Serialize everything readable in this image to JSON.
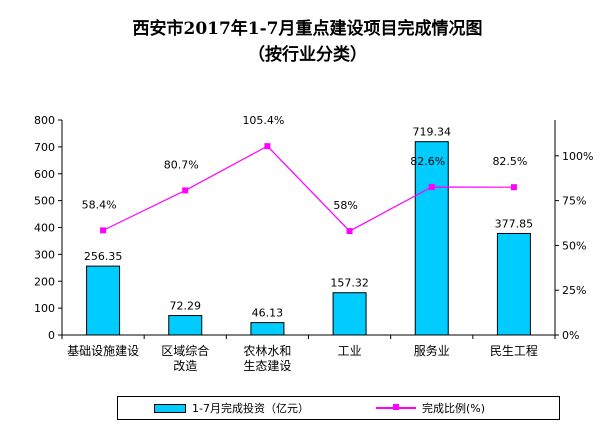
{
  "title": "西安市2017年1-7月重点建设项目完成情况图",
  "subtitle": "（按行业分类）",
  "colors": {
    "bar": "#00ccff",
    "line": "#ff00ff",
    "axis": "#000000"
  },
  "chart_data": {
    "type": "bar",
    "categories": [
      [
        "基础设施建设"
      ],
      [
        "区域综合",
        "改造"
      ],
      [
        "农林水和",
        "生态建设"
      ],
      [
        "工业"
      ],
      [
        "服务业"
      ],
      [
        "民生工程"
      ]
    ],
    "series": [
      {
        "name": "1-7月完成投资（亿元）",
        "type": "bar",
        "axis": "left",
        "values": [
          256.35,
          72.29,
          46.13,
          157.32,
          719.34,
          377.85
        ],
        "labels": [
          "256.35",
          "72.29",
          "46.13",
          "157.32",
          "719.34",
          "377.85"
        ]
      },
      {
        "name": "完成比例(%)",
        "type": "line",
        "axis": "right",
        "values": [
          58.4,
          80.7,
          105.4,
          58,
          82.6,
          82.5
        ],
        "labels": [
          "58.4%",
          "80.7%",
          "105.4%",
          "58%",
          "82.6%",
          "82.5%"
        ]
      }
    ],
    "y_left": {
      "min": 0,
      "max": 800,
      "ticks": [
        "0",
        "100",
        "200",
        "300",
        "400",
        "500",
        "600",
        "700",
        "800"
      ]
    },
    "y_right": {
      "min": 0,
      "max": 120,
      "tick_values": [
        0,
        25,
        50,
        75,
        100
      ],
      "ticks": [
        "0%",
        "25%",
        "50%",
        "75%",
        "100%"
      ]
    },
    "grid": false,
    "legend_position": "bottom"
  }
}
